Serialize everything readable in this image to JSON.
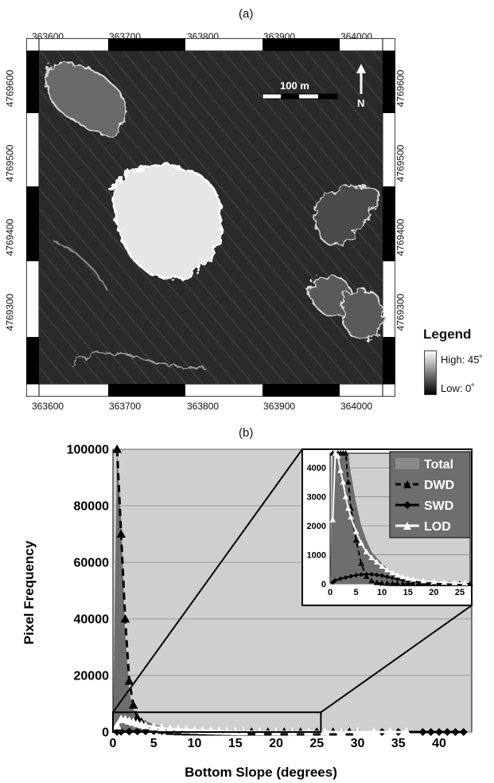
{
  "panel_a": {
    "label": "(a)",
    "scale_bar": "100 m",
    "north_label": "N",
    "easting_ticks": [
      "363600",
      "363700",
      "363800",
      "363900",
      "364000"
    ],
    "northing_ticks": [
      "4769600",
      "4769500",
      "4769400",
      "4769300"
    ],
    "legend": {
      "title": "Legend",
      "high": "High: 45˚",
      "low": "Low: 0˚"
    }
  },
  "panel_b": {
    "label": "(b)"
  },
  "chart_data": {
    "type": "line",
    "xlabel": "Bottom Slope (degrees)",
    "ylabel": "Pixel Frequency",
    "xlim": [
      0,
      44
    ],
    "ylim": [
      0,
      100000
    ],
    "xticks": [
      0,
      5,
      10,
      15,
      20,
      25,
      30,
      35,
      40
    ],
    "yticks": [
      0,
      20000,
      40000,
      60000,
      80000,
      100000
    ],
    "grid": true,
    "legend_position": "top-right",
    "series": [
      {
        "name": "Total",
        "style": "area",
        "color": "#6e6e6e",
        "x": [
          0,
          0.5,
          1,
          1.5,
          2,
          2.5,
          3,
          3.5,
          4,
          5,
          6,
          7,
          8,
          10,
          12,
          15,
          20,
          25,
          30,
          44
        ],
        "y": [
          0,
          100000,
          75000,
          35000,
          14000,
          8000,
          6000,
          4500,
          3800,
          2800,
          2000,
          1500,
          1100,
          700,
          400,
          200,
          80,
          30,
          10,
          0
        ]
      },
      {
        "name": "DWD",
        "style": "dashed",
        "marker": "triangle",
        "color": "#000000",
        "x": [
          0.5,
          1,
          1.5,
          2,
          2.5,
          3,
          3.5,
          4,
          5,
          6,
          7,
          8,
          9,
          10,
          11,
          12,
          13,
          14,
          15,
          16,
          17,
          18,
          19,
          20,
          21,
          22,
          23,
          24,
          25,
          26,
          27,
          28,
          29
        ],
        "y": [
          100000,
          70000,
          40000,
          18000,
          9500,
          5000,
          3500,
          2600,
          1500,
          700,
          250,
          100,
          40,
          20,
          10,
          5,
          3,
          2,
          1,
          1,
          1,
          0,
          0,
          0,
          0,
          0,
          0,
          0,
          0,
          0,
          0,
          0,
          0
        ]
      },
      {
        "name": "SWD",
        "style": "solid",
        "marker": "diamond",
        "color": "#000000",
        "x": [
          0.5,
          1,
          2,
          3,
          4,
          5,
          6,
          7,
          8,
          9,
          10,
          11,
          12,
          13,
          14,
          15,
          16,
          18,
          20,
          22,
          25,
          28,
          30,
          33,
          35,
          38,
          39,
          40,
          41,
          42,
          43
        ],
        "y": [
          50,
          120,
          180,
          220,
          260,
          300,
          320,
          330,
          330,
          310,
          280,
          240,
          200,
          160,
          130,
          100,
          80,
          50,
          30,
          20,
          10,
          5,
          3,
          2,
          1,
          1,
          0,
          0,
          0,
          0,
          0
        ]
      },
      {
        "name": "LOD",
        "style": "solid",
        "marker": "triangle",
        "color": "#ffffff",
        "x": [
          0.5,
          1,
          1.5,
          2,
          2.5,
          3,
          3.5,
          4,
          5,
          6,
          7,
          8,
          9,
          10,
          11,
          12,
          13,
          14,
          15,
          16,
          18,
          20,
          22,
          24,
          26,
          28,
          30,
          32,
          34,
          36
        ],
        "y": [
          2200,
          4500,
          4400,
          3900,
          3500,
          3000,
          2600,
          2300,
          1800,
          1400,
          1100,
          900,
          750,
          600,
          480,
          380,
          300,
          240,
          190,
          150,
          100,
          70,
          50,
          35,
          25,
          15,
          10,
          5,
          3,
          1
        ]
      }
    ],
    "inset": {
      "xlim": [
        0,
        27
      ],
      "ylim": [
        0,
        4500
      ],
      "xticks": [
        0,
        5,
        10,
        15,
        20,
        25
      ],
      "yticks": [
        0,
        1000,
        2000,
        3000,
        4000
      ]
    }
  }
}
